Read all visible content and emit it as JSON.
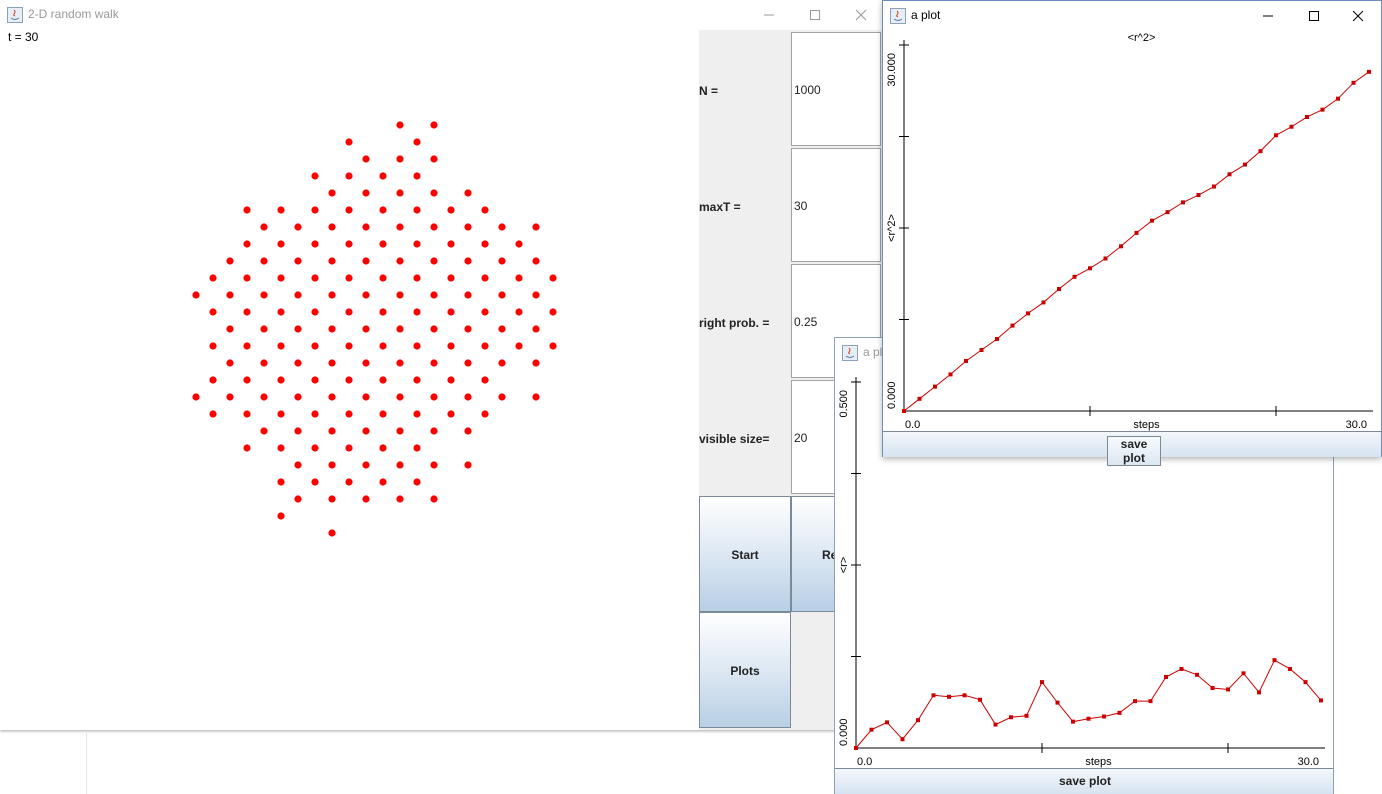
{
  "main_window": {
    "title": "2-D random walk",
    "time_label": "t = 30",
    "controls": [
      {
        "label": "N =",
        "value": "1000"
      },
      {
        "label": "maxT =",
        "value": "30"
      },
      {
        "label": "right prob. =",
        "value": "0.25"
      },
      {
        "label": "visible size=",
        "value": "20"
      }
    ],
    "buttons": {
      "start": "Start",
      "reset": "Re",
      "plots": "Plots"
    },
    "walker_color": "#ff0000"
  },
  "plot_r2": {
    "window_title": "a plot",
    "save_label": "save plot",
    "chart_data": {
      "type": "line",
      "title": "<r^2>",
      "xlabel": "steps",
      "ylabel": "<r^2>",
      "x_tick_labels": [
        "0.0",
        "30.0"
      ],
      "y_tick_labels": [
        "0.000",
        "30.000"
      ],
      "xlim": [
        0,
        30
      ],
      "ylim": [
        0,
        30
      ],
      "series": [
        {
          "color": "#cc0000",
          "x": [
            0,
            1,
            2,
            3,
            4,
            5,
            6,
            7,
            8,
            9,
            10,
            11,
            12,
            13,
            14,
            15,
            16,
            17,
            18,
            19,
            20,
            21,
            22,
            23,
            24,
            25,
            26,
            27,
            28,
            29,
            30
          ],
          "values": [
            0,
            1.0,
            2.0,
            3.0,
            4.1,
            5.0,
            5.9,
            7.0,
            8.0,
            8.9,
            10.0,
            11.0,
            11.7,
            12.5,
            13.5,
            14.6,
            15.6,
            16.3,
            17.1,
            17.7,
            18.4,
            19.4,
            20.2,
            21.3,
            22.6,
            23.3,
            24.1,
            24.7,
            25.6,
            26.9,
            27.8
          ]
        }
      ]
    }
  },
  "plot_r": {
    "window_title": "a pl",
    "save_label": "save plot",
    "chart_data": {
      "type": "line",
      "title": "",
      "xlabel": "steps",
      "ylabel": "<r>",
      "x_tick_labels": [
        "0.0",
        "30.0"
      ],
      "y_tick_labels": [
        "0.000",
        "0.500"
      ],
      "xlim": [
        0,
        30
      ],
      "ylim": [
        0,
        0.5
      ],
      "series": [
        {
          "color": "#cc0000",
          "x": [
            0,
            1,
            2,
            3,
            4,
            5,
            6,
            7,
            8,
            9,
            10,
            11,
            12,
            13,
            14,
            15,
            16,
            17,
            18,
            19,
            20,
            21,
            22,
            23,
            24,
            25,
            26,
            27,
            28,
            29,
            30
          ],
          "values": [
            0,
            0.025,
            0.035,
            0.012,
            0.038,
            0.072,
            0.07,
            0.072,
            0.066,
            0.032,
            0.042,
            0.044,
            0.09,
            0.062,
            0.036,
            0.04,
            0.043,
            0.048,
            0.064,
            0.064,
            0.097,
            0.108,
            0.1,
            0.082,
            0.08,
            0.102,
            0.076,
            0.12,
            0.108,
            0.09,
            0.065
          ]
        }
      ]
    }
  }
}
